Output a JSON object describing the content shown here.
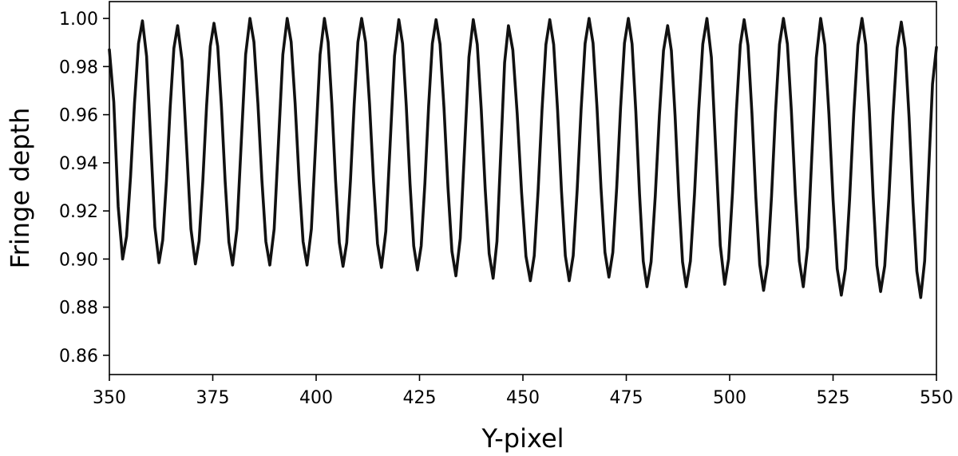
{
  "chart_data": {
    "type": "line",
    "title": "",
    "xlabel": "Y-pixel",
    "ylabel": "Fringe depth",
    "xlim": [
      350,
      550
    ],
    "ylim": [
      0.852,
      1.007
    ],
    "xticks": [
      350,
      375,
      400,
      425,
      450,
      475,
      500,
      525,
      550
    ],
    "yticks": [
      0.86,
      0.88,
      0.9,
      0.92,
      0.94,
      0.96,
      0.98,
      1.0
    ],
    "xtick_labels": [
      "350",
      "375",
      "400",
      "425",
      "450",
      "475",
      "500",
      "525",
      "550"
    ],
    "ytick_labels": [
      "0.86",
      "0.88",
      "0.90",
      "0.92",
      "0.94",
      "0.96",
      "0.98",
      "1.00"
    ],
    "grid": false,
    "legend": "none",
    "line_color": "#111111",
    "series": [
      {
        "maxima": [
          [
            358.0,
            0.999
          ],
          [
            366.5,
            0.997
          ],
          [
            375.3,
            0.998
          ],
          [
            384.0,
            1.0
          ],
          [
            393.0,
            1.0
          ],
          [
            402.0,
            1.0
          ],
          [
            411.0,
            1.0
          ],
          [
            420.0,
            0.9995
          ],
          [
            429.0,
            0.9995
          ],
          [
            438.0,
            0.9995
          ],
          [
            446.5,
            0.997
          ],
          [
            456.5,
            0.9995
          ],
          [
            466.0,
            1.0
          ],
          [
            475.5,
            1.0
          ],
          [
            485.0,
            0.997
          ],
          [
            494.5,
            1.0
          ],
          [
            503.5,
            0.9995
          ],
          [
            513.0,
            1.0
          ],
          [
            522.0,
            1.0
          ],
          [
            532.0,
            1.0
          ],
          [
            541.5,
            0.9985
          ]
        ],
        "minima": [
          [
            353.2,
            0.9
          ],
          [
            362.0,
            0.8985
          ],
          [
            370.8,
            0.898
          ],
          [
            379.8,
            0.8975
          ],
          [
            388.8,
            0.8975
          ],
          [
            397.8,
            0.8975
          ],
          [
            406.5,
            0.897
          ],
          [
            415.8,
            0.8965
          ],
          [
            424.5,
            0.8955
          ],
          [
            433.8,
            0.893
          ],
          [
            442.8,
            0.892
          ],
          [
            451.8,
            0.891
          ],
          [
            461.2,
            0.891
          ],
          [
            470.8,
            0.8925
          ],
          [
            480.0,
            0.8885
          ],
          [
            489.5,
            0.8885
          ],
          [
            498.8,
            0.8895
          ],
          [
            508.2,
            0.887
          ],
          [
            517.8,
            0.8885
          ],
          [
            527.0,
            0.885
          ],
          [
            536.5,
            0.8865
          ],
          [
            546.2,
            0.884
          ]
        ],
        "start": [
          350.0,
          0.987
        ],
        "end": [
          550.0,
          0.988
        ]
      }
    ]
  }
}
